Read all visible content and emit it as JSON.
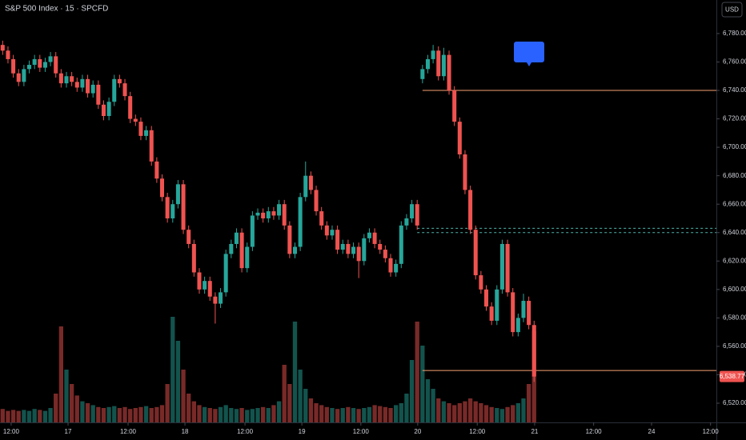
{
  "chart_data": {
    "type": "candlestick",
    "title": "S&P 500 Index · 15 · SPCFD",
    "currency": "USD",
    "up_color": "#26a69a",
    "down_color": "#ef5350",
    "open": [
      6772,
      6768,
      6762,
      6752,
      6746,
      6755,
      6758,
      6762,
      6756,
      6760,
      6764,
      6752,
      6745,
      6750,
      6746,
      6742,
      6748,
      6738,
      6744,
      6730,
      6722,
      6732,
      6748,
      6745,
      6736,
      6720,
      6718,
      6708,
      6712,
      6690,
      6678,
      6665,
      6650,
      6660,
      6674,
      6642,
      6632,
      6612,
      6600,
      6606,
      6595,
      6590,
      6598,
      6625,
      6632,
      6640,
      6615,
      6630,
      6652,
      6654,
      6650,
      6655,
      6652,
      6660,
      6645,
      6625,
      6630,
      6665,
      6680,
      6670,
      6655,
      6645,
      6638,
      6642,
      6628,
      6632,
      6625,
      6630,
      6620,
      6636,
      6640,
      6632,
      6628,
      6622,
      6612,
      6618,
      6645,
      6650,
      6660,
      6748,
      6755,
      6762,
      6768,
      6750,
      6765,
      6740,
      6718,
      6695,
      6670,
      6642,
      6610,
      6600,
      6588,
      6578,
      6600,
      6632,
      6598,
      6570,
      6580,
      6592,
      6575
    ],
    "high": [
      6775,
      6771,
      6765,
      6755,
      6758,
      6761,
      6765,
      6765,
      6763,
      6767,
      6767,
      6755,
      6753,
      6753,
      6749,
      6751,
      6751,
      6747,
      6747,
      6733,
      6735,
      6751,
      6751,
      6748,
      6739,
      6723,
      6721,
      6715,
      6715,
      6693,
      6681,
      6668,
      6663,
      6677,
      6677,
      6645,
      6635,
      6615,
      6609,
      6609,
      6598,
      6601,
      6628,
      6635,
      6643,
      6643,
      6633,
      6655,
      6657,
      6657,
      6658,
      6658,
      6663,
      6663,
      6648,
      6633,
      6668,
      6690,
      6683,
      6673,
      6658,
      6648,
      6645,
      6645,
      6635,
      6635,
      6633,
      6633,
      6639,
      6643,
      6643,
      6635,
      6631,
      6625,
      6621,
      6648,
      6653,
      6663,
      6663,
      6758,
      6765,
      6772,
      6771,
      6770,
      6768,
      6743,
      6721,
      6698,
      6673,
      6645,
      6613,
      6603,
      6591,
      6603,
      6635,
      6635,
      6601,
      6583,
      6597,
      6595,
      6578
    ],
    "low": [
      6765,
      6759,
      6749,
      6743,
      6743,
      6752,
      6755,
      6753,
      6753,
      6757,
      6749,
      6742,
      6742,
      6743,
      6739,
      6739,
      6735,
      6735,
      6727,
      6719,
      6719,
      6729,
      6742,
      6733,
      6717,
      6715,
      6705,
      6705,
      6687,
      6675,
      6662,
      6647,
      6647,
      6657,
      6639,
      6629,
      6609,
      6597,
      6597,
      6592,
      6576,
      6587,
      6595,
      6622,
      6629,
      6612,
      6612,
      6627,
      6649,
      6647,
      6647,
      6649,
      6649,
      6642,
      6622,
      6622,
      6627,
      6662,
      6667,
      6652,
      6642,
      6635,
      6635,
      6625,
      6625,
      6622,
      6622,
      6608,
      6617,
      6633,
      6629,
      6625,
      6619,
      6609,
      6609,
      6615,
      6642,
      6647,
      6642,
      6745,
      6752,
      6759,
      6747,
      6747,
      6737,
      6715,
      6692,
      6667,
      6639,
      6607,
      6597,
      6585,
      6575,
      6575,
      6597,
      6595,
      6567,
      6567,
      6577,
      6572,
      6535
    ],
    "close": [
      6768,
      6762,
      6752,
      6746,
      6755,
      6758,
      6762,
      6756,
      6760,
      6764,
      6752,
      6745,
      6750,
      6746,
      6742,
      6748,
      6738,
      6744,
      6730,
      6722,
      6732,
      6748,
      6745,
      6736,
      6720,
      6718,
      6708,
      6712,
      6690,
      6678,
      6665,
      6650,
      6660,
      6674,
      6642,
      6632,
      6612,
      6600,
      6606,
      6595,
      6590,
      6598,
      6625,
      6632,
      6640,
      6615,
      6630,
      6652,
      6654,
      6650,
      6655,
      6652,
      6660,
      6645,
      6625,
      6630,
      6665,
      6680,
      6670,
      6655,
      6645,
      6638,
      6642,
      6628,
      6632,
      6625,
      6630,
      6620,
      6636,
      6640,
      6632,
      6628,
      6622,
      6612,
      6618,
      6645,
      6650,
      6660,
      6645,
      6755,
      6762,
      6768,
      6750,
      6765,
      6740,
      6718,
      6695,
      6670,
      6642,
      6610,
      6600,
      6588,
      6578,
      6600,
      6632,
      6598,
      6570,
      6580,
      6592,
      6575,
      6538.77
    ],
    "volume": [
      14,
      12,
      13,
      12,
      13,
      12,
      14,
      13,
      12,
      15,
      30,
      100,
      55,
      40,
      28,
      22,
      20,
      18,
      16,
      15,
      16,
      17,
      15,
      16,
      14,
      15,
      16,
      17,
      15,
      16,
      18,
      40,
      110,
      85,
      55,
      30,
      22,
      18,
      16,
      15,
      14,
      16,
      18,
      15,
      14,
      15,
      13,
      14,
      15,
      16,
      15,
      18,
      22,
      60,
      40,
      105,
      55,
      35,
      25,
      20,
      18,
      16,
      15,
      14,
      15,
      16,
      15,
      14,
      15,
      16,
      18,
      17,
      16,
      15,
      18,
      20,
      30,
      65,
      105,
      80,
      45,
      35,
      25,
      22,
      20,
      18,
      20,
      22,
      25,
      22,
      20,
      18,
      16,
      15,
      14,
      16,
      18,
      20,
      25,
      40,
      95
    ],
    "levels": [
      {
        "value": 6740,
        "start": 79,
        "color": "#f7a072",
        "dashed": false
      },
      {
        "value": 6643,
        "start": 78,
        "color": "#4db6ac",
        "dashed": true
      },
      {
        "value": 6640,
        "start": 78,
        "color": "#4db6ac",
        "dashed": true
      },
      {
        "value": 6543,
        "start": 79,
        "color": "#f7a072",
        "dashed": false
      }
    ],
    "last_price": {
      "value": 6538.77,
      "label": "6,538.77"
    },
    "xlim": [
      -0.5,
      134.3
    ],
    "xticks": [
      {
        "value": 1.6,
        "label": "12:00"
      },
      {
        "value": 12.3,
        "label": "17"
      },
      {
        "value": 23.6,
        "label": "12:00"
      },
      {
        "value": 34.3,
        "label": "18"
      },
      {
        "value": 45.6,
        "label": "12:00"
      },
      {
        "value": 56.3,
        "label": "19"
      },
      {
        "value": 67.4,
        "label": "12:00"
      },
      {
        "value": 78.1,
        "label": "20"
      },
      {
        "value": 89.3,
        "label": "12:00"
      },
      {
        "value": 100.1,
        "label": "21"
      },
      {
        "value": 111.2,
        "label": "12:00"
      },
      {
        "value": 122.1,
        "label": "24"
      },
      {
        "value": 133.2,
        "label": "12:00"
      }
    ],
    "ylim": [
      6506.5,
      6803.6
    ],
    "yticks": [
      {
        "value": 6520,
        "label": "6,520.00"
      },
      {
        "value": 6540,
        "label": "6,540.00"
      },
      {
        "value": 6560,
        "label": "6,560.00"
      },
      {
        "value": 6580,
        "label": "6,580.00"
      },
      {
        "value": 6600,
        "label": "6,600.00"
      },
      {
        "value": 6620,
        "label": "6,620.00"
      },
      {
        "value": 6640,
        "label": "6,640.00"
      },
      {
        "value": 6660,
        "label": "6,660.00"
      },
      {
        "value": 6680,
        "label": "6,680.00"
      },
      {
        "value": 6700,
        "label": "6,700.00"
      },
      {
        "value": 6720,
        "label": "6,720.00"
      },
      {
        "value": 6740,
        "label": "6,740.00"
      },
      {
        "value": 6760,
        "label": "6,760.00"
      },
      {
        "value": 6780,
        "label": "6,780.00"
      }
    ]
  }
}
